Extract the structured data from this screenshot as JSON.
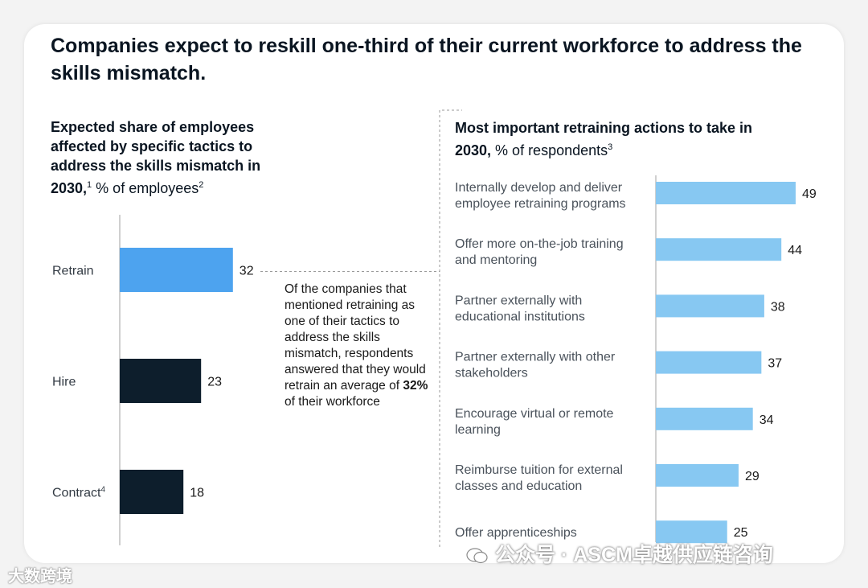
{
  "title": "Companies expect to reskill one-third of their current workforce to address the skills mismatch.",
  "left_panel": {
    "subtitle_bold": "Expected share of employees affected by specific tactics to address the skills mismatch in 2030,",
    "subtitle_sup1": "1",
    "subtitle_unit": " % of employees",
    "subtitle_sup2": "2"
  },
  "annotation": {
    "text_before": "Of the companies that mentioned retraining as one of their tactics to address the skills mismatch, respondents answered that they would retrain an average of ",
    "highlight": "32%",
    "text_after": " of their workforce"
  },
  "right_panel": {
    "subtitle_bold": "Most important retraining actions to take in 2030,",
    "subtitle_unit": " % of respondents",
    "subtitle_sup": "3"
  },
  "watermarks": {
    "left": "大数跨境",
    "right": "公众号 · ASCM卓越供应链咨询"
  },
  "colors": {
    "retrain": "#4da3ef",
    "dark": "#0d1e2c",
    "light_blue": "#87c8f2",
    "axis": "#a0a0a0"
  },
  "chart_data": [
    {
      "type": "bar",
      "orientation": "horizontal",
      "title": "Expected share of employees affected by specific tactics to address the skills mismatch in 2030",
      "unit": "% of employees",
      "categories": [
        "Retrain",
        "Hire",
        "Contract"
      ],
      "category_sups": [
        "",
        "",
        "4"
      ],
      "values": [
        32,
        23,
        18
      ],
      "xlim": [
        0,
        100
      ]
    },
    {
      "type": "bar",
      "orientation": "horizontal",
      "title": "Most important retraining actions to take in 2030",
      "unit": "% of respondents",
      "categories": [
        [
          "Internally develop and deliver",
          "employee retraining programs"
        ],
        [
          "Offer more on-the-job training",
          "and mentoring"
        ],
        [
          "Partner externally with",
          "educational institutions"
        ],
        [
          "Partner externally with other",
          "stakeholders"
        ],
        [
          "Encourage virtual or remote",
          "learning"
        ],
        [
          "Reimburse tuition for external",
          "classes and education"
        ],
        [
          "Offer apprenticeships"
        ]
      ],
      "values": [
        49,
        44,
        38,
        37,
        34,
        29,
        25
      ],
      "xlim": [
        0,
        100
      ]
    }
  ]
}
